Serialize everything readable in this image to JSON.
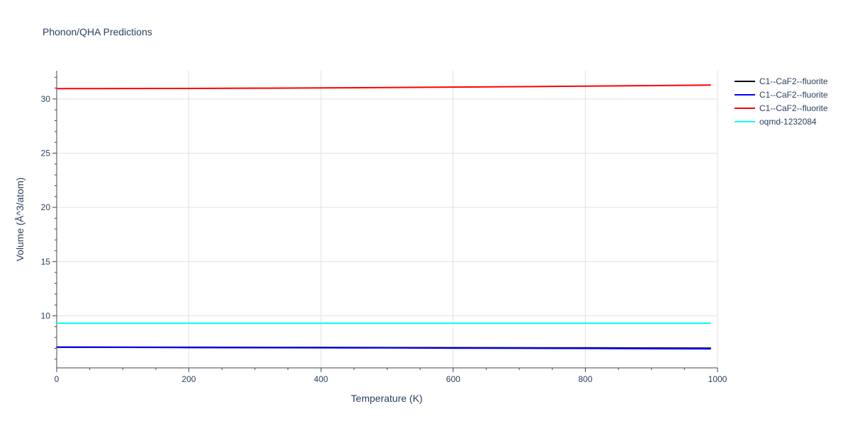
{
  "chart_data": {
    "type": "line",
    "title": "Phonon/QHA Predictions",
    "xlabel": "Temperature (K)",
    "ylabel": "Volume (Å^3/atom)",
    "xlim": [
      0,
      1000
    ],
    "ylim": [
      5.2,
      32.6
    ],
    "x_ticks": [
      0,
      200,
      400,
      600,
      800,
      1000
    ],
    "y_ticks": [
      10,
      15,
      20,
      25,
      30
    ],
    "grid": true,
    "legend_position": "top-right",
    "series": [
      {
        "name": "C1--CaF2--fluorite",
        "color": "#000000",
        "x": [
          0,
          100,
          200,
          300,
          400,
          500,
          600,
          700,
          800,
          900,
          990
        ],
        "y": [
          7.12,
          7.11,
          7.1,
          7.09,
          7.08,
          7.07,
          7.06,
          7.05,
          7.04,
          7.03,
          7.02
        ]
      },
      {
        "name": "C1--CaF2--fluorite",
        "color": "#0000ff",
        "x": [
          0,
          100,
          200,
          300,
          400,
          500,
          600,
          700,
          800,
          900,
          990
        ],
        "y": [
          7.1,
          7.09,
          7.07,
          7.06,
          7.05,
          7.04,
          7.02,
          7.01,
          6.99,
          6.97,
          6.95
        ]
      },
      {
        "name": "C1--CaF2--fluorite",
        "color": "#ff0000",
        "x": [
          0,
          100,
          200,
          300,
          400,
          500,
          600,
          700,
          800,
          900,
          990
        ],
        "y": [
          30.95,
          30.96,
          30.97,
          30.99,
          31.02,
          31.05,
          31.09,
          31.13,
          31.18,
          31.23,
          31.28
        ]
      },
      {
        "name": "oqmd-1232084",
        "color": "#00ffff",
        "x": [
          0,
          990
        ],
        "y": [
          9.32,
          9.32
        ]
      }
    ]
  }
}
